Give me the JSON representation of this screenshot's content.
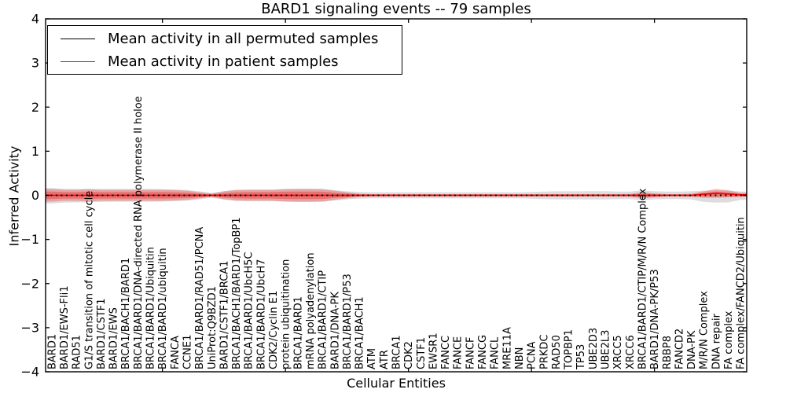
{
  "title": "BARD1 signaling events -- 79 samples",
  "axes": {
    "ylabel": "Inferred Activity",
    "xlabel": "Cellular Entities",
    "ytick_labels": [
      "−4",
      "−3",
      "−2",
      "−1",
      "0",
      "1",
      "2",
      "3",
      "4"
    ],
    "ytick_values": [
      -4,
      -3,
      -2,
      -1,
      0,
      1,
      2,
      3,
      4
    ],
    "xtick_positions": [
      10,
      20,
      30,
      40,
      50
    ]
  },
  "legend": {
    "items": [
      {
        "label": "Mean activity in all permuted samples",
        "color": "#000000"
      },
      {
        "label": "Mean activity in patient samples",
        "color": "#ff0000"
      }
    ]
  },
  "colors": {
    "permuted_line": "#000000",
    "patient_line": "#ff0000",
    "permuted_band": "#aaaaaa",
    "patient_band": "#ee2222",
    "spine": "#000000"
  },
  "chart_data": {
    "type": "line",
    "title": "BARD1 signaling events -- 79 samples",
    "xlabel": "Cellular Entities",
    "ylabel": "Inferred Activity",
    "ylim": [
      -4,
      4
    ],
    "grid": false,
    "legend_position": "upper left",
    "categories": [
      "BARD1",
      "BARD1/EWS-Fli1",
      "RAD51",
      "G1/S transition of mitotic cell cycle",
      "BARD1/CSTF1",
      "BARD1/EWS",
      "BRCA1/BACH1/BARD1",
      "BRCA1/BARD1/DNA-directed RNA polymerase II holoe",
      "BRCA1/BARD1/Ubiquitin",
      "BRCA1/BARD1/ubiquitin",
      "FANCA",
      "CCNE1",
      "BRCA1/BARD1/RAD51/PCNA",
      "UniProt:Q9BZD1",
      "BARD1/CSTF1/BRCA1",
      "BRCA1/BACH1/BARD1/TopBP1",
      "BRCA1/BARD1/UbcH5C",
      "BRCA1/BARD1/UbcH7",
      "CDK2/Cyclin E1",
      "protein ubiquitination",
      "BRCA1/BARD1",
      "mRNA polyadenylation",
      "BRCA1/BARD1/CTIP",
      "BARD1/DNA-PK",
      "BRCA1/BARD1/P53",
      "BRCA1/BACH1",
      "ATM",
      "ATR",
      "BRCA1",
      "CDK2",
      "CSTF1",
      "EWSR1",
      "FANCC",
      "FANCE",
      "FANCF",
      "FANCG",
      "FANCL",
      "MRE11A",
      "NBN",
      "PCNA",
      "PRKDC",
      "RAD50",
      "TOPBP1",
      "TP53",
      "UBE2D3",
      "UBE2L3",
      "XRCC5",
      "XRCC6",
      "BRCA1/BARD1/CTIP/M/R/N Complex",
      "BARD1/DNA-PK/P53",
      "RBBP8",
      "FANCD2",
      "DNA-PK",
      "M/R/N Complex",
      "DNA repair",
      "FA complex",
      "FA complex/FANCD2/Ubiquitin"
    ],
    "series": [
      {
        "name": "Mean activity in all permuted samples",
        "color": "#000000",
        "style": "dotted",
        "values": [
          0,
          0,
          0,
          0,
          0,
          0,
          0,
          0,
          0,
          0,
          0,
          0,
          0,
          0,
          0,
          0,
          0,
          0,
          0,
          0,
          0,
          0,
          0,
          0,
          0,
          0,
          0,
          0,
          0,
          0,
          0,
          0,
          0,
          0,
          0,
          0,
          0,
          0,
          0,
          0,
          0,
          0,
          0,
          0,
          0,
          0,
          0,
          0,
          0,
          0,
          0,
          0,
          0,
          0,
          0,
          0,
          0
        ]
      },
      {
        "name": "Mean activity in patient samples",
        "color": "#ff0000",
        "style": "solid",
        "values": [
          0,
          0,
          0,
          0,
          0,
          0,
          0,
          0,
          0,
          0,
          0,
          0,
          0,
          0,
          0,
          0,
          0,
          0,
          0,
          0,
          0,
          0,
          0,
          0,
          0,
          0,
          0,
          0,
          0,
          0,
          0,
          0,
          0,
          0,
          0,
          0,
          0,
          0,
          0,
          0,
          0,
          0,
          0,
          0,
          0,
          0,
          0,
          0,
          0,
          0,
          0,
          0,
          0,
          0.025,
          0.045,
          0.03,
          0.01
        ]
      }
    ],
    "bands": [
      {
        "name": "permuted-std-band",
        "color": "#aaaaaa",
        "opacity": 0.4,
        "upper": [
          0.165,
          0.15,
          0.145,
          0.145,
          0.145,
          0.145,
          0.145,
          0.145,
          0.145,
          0.14,
          0.13,
          0.12,
          0.09,
          0.055,
          0.095,
          0.125,
          0.13,
          0.13,
          0.13,
          0.145,
          0.15,
          0.15,
          0.145,
          0.115,
          0.09,
          0.075,
          0.07,
          0.07,
          0.07,
          0.07,
          0.07,
          0.07,
          0.07,
          0.07,
          0.07,
          0.07,
          0.07,
          0.07,
          0.07,
          0.075,
          0.085,
          0.09,
          0.09,
          0.09,
          0.095,
          0.095,
          0.085,
          0.085,
          0.11,
          0.09,
          0.085,
          0.085,
          0.09,
          0.105,
          0.11,
          0.11,
          0.085
        ],
        "lower": [
          0.185,
          0.165,
          0.16,
          0.155,
          0.15,
          0.145,
          0.145,
          0.145,
          0.145,
          0.14,
          0.13,
          0.12,
          0.09,
          0.055,
          0.095,
          0.125,
          0.13,
          0.13,
          0.13,
          0.145,
          0.15,
          0.15,
          0.145,
          0.115,
          0.09,
          0.075,
          0.07,
          0.07,
          0.07,
          0.07,
          0.07,
          0.07,
          0.07,
          0.07,
          0.07,
          0.07,
          0.07,
          0.07,
          0.07,
          0.075,
          0.085,
          0.09,
          0.09,
          0.09,
          0.095,
          0.095,
          0.085,
          0.085,
          0.11,
          0.09,
          0.085,
          0.085,
          0.095,
          0.15,
          0.165,
          0.16,
          0.105
        ]
      },
      {
        "name": "patient-std-band",
        "color": "#ee2222",
        "opacity": 0.3,
        "upper": [
          0.145,
          0.125,
          0.125,
          0.14,
          0.125,
          0.125,
          0.125,
          0.125,
          0.125,
          0.125,
          0.12,
          0.105,
          0.07,
          0.035,
          0.09,
          0.12,
          0.125,
          0.125,
          0.125,
          0.14,
          0.145,
          0.145,
          0.14,
          0.105,
          0.07,
          0.035,
          0.027,
          0.027,
          0.027,
          0.027,
          0.027,
          0.027,
          0.027,
          0.027,
          0.027,
          0.027,
          0.027,
          0.027,
          0.027,
          0.027,
          0.027,
          0.027,
          0.027,
          0.027,
          0.027,
          0.027,
          0.027,
          0.03,
          0.07,
          0.045,
          0.027,
          0.027,
          0.035,
          0.09,
          0.145,
          0.11,
          0.055
        ],
        "lower": [
          0.145,
          0.125,
          0.125,
          0.14,
          0.125,
          0.125,
          0.125,
          0.125,
          0.125,
          0.125,
          0.12,
          0.105,
          0.07,
          0.035,
          0.09,
          0.12,
          0.125,
          0.125,
          0.125,
          0.14,
          0.145,
          0.145,
          0.14,
          0.105,
          0.07,
          0.035,
          0.027,
          0.027,
          0.027,
          0.027,
          0.027,
          0.027,
          0.027,
          0.027,
          0.027,
          0.027,
          0.027,
          0.027,
          0.027,
          0.027,
          0.027,
          0.027,
          0.027,
          0.027,
          0.027,
          0.027,
          0.027,
          0.03,
          0.07,
          0.045,
          0.027,
          0.027,
          0.035,
          0.055,
          0.055,
          0.05,
          0.035
        ]
      }
    ]
  }
}
